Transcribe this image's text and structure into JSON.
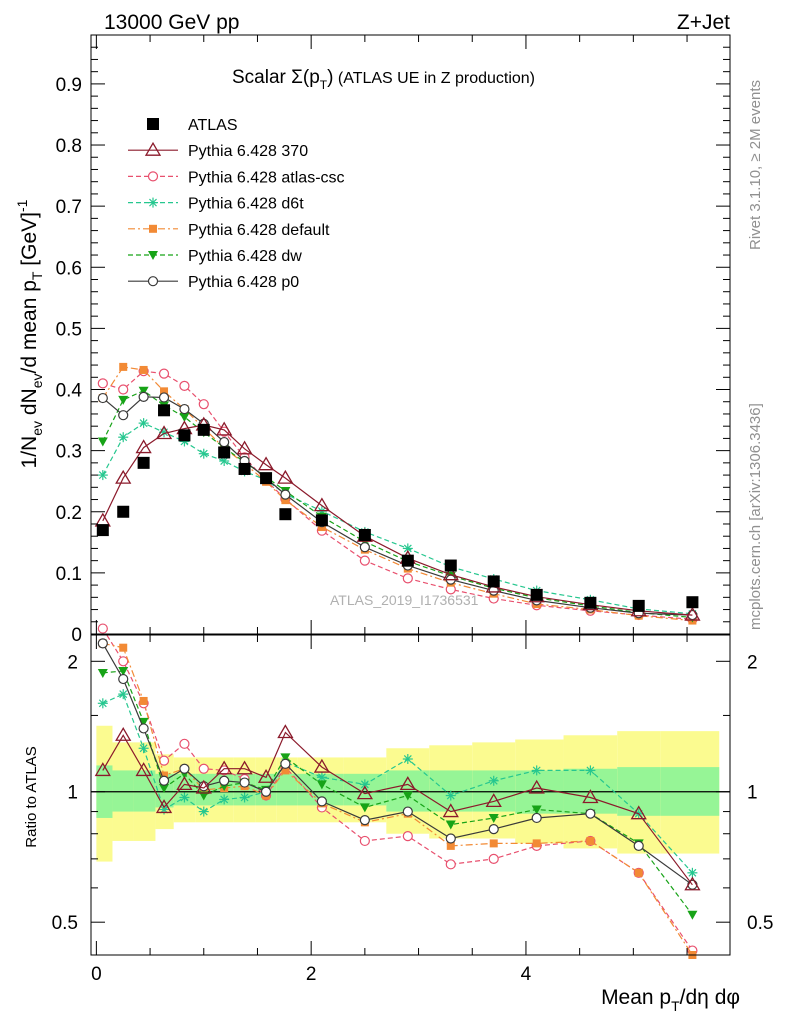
{
  "header": {
    "energy_label": "13000 GeV pp",
    "process_label": "Z+Jet"
  },
  "plot_title": {
    "main": "Scalar Σ(p",
    "sub": "T",
    "close": ")",
    "rest": " (ATLAS UE in Z production)"
  },
  "side_labels": {
    "rivet": "Rivet 3.1.10, ≥ 2M events",
    "mcplots": "mcplots.cern.ch [arXiv:1306.3436]"
  },
  "watermark": "ATLAS_2019_I1736531",
  "y_label_main": {
    "p1": "1/N",
    "s1": "ev",
    "p2": " dN",
    "s2": "ev",
    "p3": "/d mean p",
    "s3": "T",
    "p4": " [GeV]",
    "sup": "-1"
  },
  "y_label_ratio": "Ratio to ATLAS",
  "x_label": {
    "p1": "Mean p",
    "s1": "T",
    "p2": "/dη dφ"
  },
  "colors": {
    "atlas": "#000000",
    "p370": "#8b1a2b",
    "atlascsc": "#e8506e",
    "d6t": "#26c78f",
    "default": "#f28a35",
    "dw": "#17a317",
    "p0": "#3a3a3a",
    "band_outer": "#fbfb90",
    "band_inner": "#96f596"
  },
  "chart_data": [
    {
      "type": "line",
      "panel": "main",
      "title": "Scalar Σ(p_T) (ATLAS UE in Z production)",
      "xlabel": "Mean p_T/dη dφ",
      "ylabel": "1/N_ev dN_ev/d mean p_T [GeV]^-1",
      "xlim": [
        -0.05,
        5.9
      ],
      "ylim": [
        0,
        0.98
      ],
      "x_ticks": [
        0,
        2,
        4
      ],
      "y_ticks": [
        0,
        0.1,
        0.2,
        0.3,
        0.4,
        0.5,
        0.6,
        0.7,
        0.8,
        0.9
      ],
      "y_tick_labels": [
        "0",
        "0.1",
        "0.2",
        "0.3",
        "0.4",
        "0.5",
        "0.6",
        "0.7",
        "0.8",
        "0.9"
      ],
      "legend_position": "top-left",
      "series": [
        {
          "name": "ATLAS",
          "key": "atlas",
          "marker": "square",
          "line": "none",
          "x": [
            0.06,
            0.25,
            0.44,
            0.63,
            0.82,
            1.0,
            1.19,
            1.38,
            1.58,
            1.76,
            2.1,
            2.5,
            2.9,
            3.3,
            3.7,
            4.1,
            4.6,
            5.05,
            5.55
          ],
          "y": [
            0.17,
            0.2,
            0.28,
            0.366,
            0.325,
            0.334,
            0.297,
            0.27,
            0.255,
            0.196,
            0.186,
            0.162,
            0.12,
            0.112,
            0.086,
            0.064,
            0.051,
            0.046,
            0.052
          ]
        },
        {
          "name": "Pythia 6.428 370",
          "key": "p370",
          "marker": "open-triangle",
          "line": "solid",
          "x": [
            0.06,
            0.25,
            0.44,
            0.63,
            0.82,
            1.0,
            1.19,
            1.38,
            1.58,
            1.76,
            2.1,
            2.5,
            2.9,
            3.3,
            3.7,
            4.1,
            4.6,
            5.05,
            5.55
          ],
          "y": [
            0.185,
            0.255,
            0.305,
            0.328,
            0.336,
            0.342,
            0.334,
            0.303,
            0.277,
            0.255,
            0.21,
            0.16,
            0.124,
            0.097,
            0.077,
            0.061,
            0.048,
            0.038,
            0.031
          ]
        },
        {
          "name": "Pythia 6.428 atlas-csc",
          "key": "atlascsc",
          "marker": "open-circle",
          "line": "dashed",
          "x": [
            0.06,
            0.25,
            0.44,
            0.63,
            0.82,
            1.0,
            1.19,
            1.38,
            1.58,
            1.76,
            2.1,
            2.5,
            2.9,
            3.3,
            3.7,
            4.1,
            4.6,
            5.05,
            5.55
          ],
          "y": [
            0.41,
            0.4,
            0.43,
            0.426,
            0.406,
            0.376,
            0.331,
            0.289,
            0.251,
            0.221,
            0.169,
            0.12,
            0.091,
            0.073,
            0.058,
            0.047,
            0.038,
            0.031,
            0.024
          ]
        },
        {
          "name": "Pythia 6.428 d6t",
          "key": "d6t",
          "marker": "star",
          "line": "dashed",
          "x": [
            0.06,
            0.25,
            0.44,
            0.63,
            0.82,
            1.0,
            1.19,
            1.38,
            1.58,
            1.76,
            2.1,
            2.5,
            2.9,
            3.3,
            3.7,
            4.1,
            4.6,
            5.05,
            5.55
          ],
          "y": [
            0.26,
            0.322,
            0.345,
            0.33,
            0.315,
            0.295,
            0.283,
            0.266,
            0.252,
            0.229,
            0.201,
            0.167,
            0.14,
            0.11,
            0.09,
            0.071,
            0.056,
            0.041,
            0.033
          ]
        },
        {
          "name": "Pythia 6.428 default",
          "key": "default",
          "marker": "filled-square",
          "line": "dashdot",
          "x": [
            0.06,
            0.25,
            0.44,
            0.63,
            0.82,
            1.0,
            1.19,
            1.38,
            1.58,
            1.76,
            2.1,
            2.5,
            2.9,
            3.3,
            3.7,
            4.1,
            4.6,
            5.05,
            5.55
          ],
          "y": [
            0.386,
            0.437,
            0.432,
            0.397,
            0.368,
            0.337,
            0.304,
            0.279,
            0.249,
            0.219,
            0.175,
            0.138,
            0.107,
            0.084,
            0.066,
            0.049,
            0.04,
            0.03,
            0.022
          ]
        },
        {
          "name": "Pythia 6.428 dw",
          "key": "dw",
          "marker": "filled-triangle-down",
          "line": "dashed",
          "x": [
            0.06,
            0.25,
            0.44,
            0.63,
            0.82,
            1.0,
            1.19,
            1.38,
            1.58,
            1.76,
            2.1,
            2.5,
            2.9,
            3.3,
            3.7,
            4.1,
            4.6,
            5.05,
            5.55
          ],
          "y": [
            0.315,
            0.383,
            0.398,
            0.374,
            0.355,
            0.33,
            0.305,
            0.281,
            0.257,
            0.234,
            0.192,
            0.151,
            0.119,
            0.095,
            0.075,
            0.059,
            0.046,
            0.035,
            0.027
          ]
        },
        {
          "name": "Pythia 6.428 p0",
          "key": "p0",
          "marker": "open-circle",
          "line": "solid",
          "x": [
            0.06,
            0.25,
            0.44,
            0.63,
            0.82,
            1.0,
            1.19,
            1.38,
            1.58,
            1.76,
            2.1,
            2.5,
            2.9,
            3.3,
            3.7,
            4.1,
            4.6,
            5.05,
            5.55
          ],
          "y": [
            0.386,
            0.358,
            0.388,
            0.387,
            0.368,
            0.344,
            0.314,
            0.283,
            0.255,
            0.228,
            0.183,
            0.142,
            0.112,
            0.089,
            0.071,
            0.055,
            0.043,
            0.034,
            0.031
          ]
        }
      ]
    },
    {
      "type": "line",
      "panel": "ratio",
      "ylabel": "Ratio to ATLAS",
      "xlabel": "Mean p_T/dη dφ",
      "xlim": [
        -0.05,
        5.9
      ],
      "ylim": [
        0.42,
        2.3
      ],
      "y_scale": "log",
      "x_ticks": [
        0,
        2,
        4
      ],
      "y_ticks": [
        0.5,
        1,
        2
      ],
      "y_tick_labels": [
        "0.5",
        "1",
        "2"
      ],
      "reference_line": 1,
      "bands": {
        "x_edges": [
          0.0,
          0.15,
          0.35,
          0.55,
          0.72,
          0.92,
          1.1,
          1.28,
          1.48,
          1.68,
          1.87,
          2.3,
          2.7,
          3.1,
          3.5,
          3.9,
          4.35,
          4.85,
          5.25,
          5.8
        ],
        "outer_lo": [
          0.69,
          0.77,
          0.77,
          0.82,
          0.85,
          0.85,
          0.85,
          0.85,
          0.85,
          0.85,
          0.85,
          0.85,
          0.8,
          0.78,
          0.78,
          0.76,
          0.74,
          0.72,
          0.72
        ],
        "outer_hi": [
          1.42,
          1.3,
          1.3,
          1.22,
          1.2,
          1.2,
          1.2,
          1.2,
          1.2,
          1.2,
          1.2,
          1.2,
          1.26,
          1.28,
          1.3,
          1.32,
          1.35,
          1.38,
          1.38
        ],
        "inner_lo": [
          0.87,
          0.9,
          0.9,
          0.92,
          0.93,
          0.93,
          0.93,
          0.93,
          0.93,
          0.93,
          0.93,
          0.93,
          0.9,
          0.9,
          0.9,
          0.89,
          0.89,
          0.88,
          0.88
        ],
        "inner_hi": [
          1.15,
          1.12,
          1.12,
          1.1,
          1.1,
          1.1,
          1.1,
          1.1,
          1.1,
          1.1,
          1.1,
          1.1,
          1.12,
          1.12,
          1.12,
          1.12,
          1.13,
          1.14,
          1.14
        ]
      },
      "series": [
        {
          "name": "Pythia 6.428 370",
          "key": "p370",
          "marker": "open-triangle",
          "line": "solid",
          "x": [
            0.06,
            0.25,
            0.44,
            0.63,
            0.82,
            1.0,
            1.19,
            1.38,
            1.58,
            1.76,
            2.1,
            2.5,
            2.9,
            3.3,
            3.7,
            4.1,
            4.6,
            5.05,
            5.55
          ],
          "y": [
            1.12,
            1.35,
            1.12,
            0.92,
            1.04,
            1.02,
            1.13,
            1.13,
            1.08,
            1.37,
            1.14,
            0.99,
            1.04,
            0.9,
            0.95,
            1.02,
            0.97,
            0.89,
            0.61
          ]
        },
        {
          "name": "Pythia 6.428 atlas-csc",
          "key": "atlascsc",
          "marker": "open-circle",
          "line": "dashed",
          "x": [
            0.06,
            0.25,
            0.44,
            0.63,
            0.82,
            1.0,
            1.19,
            1.38,
            1.58,
            1.76,
            2.1,
            2.5,
            2.9,
            3.3,
            3.7,
            4.1,
            4.6,
            5.05,
            5.55
          ],
          "y": [
            2.38,
            2.0,
            1.6,
            1.18,
            1.29,
            1.13,
            1.12,
            1.07,
            0.98,
            1.14,
            0.92,
            0.77,
            0.79,
            0.68,
            0.7,
            0.75,
            0.77,
            0.65,
            0.43
          ]
        },
        {
          "name": "Pythia 6.428 d6t",
          "key": "d6t",
          "marker": "star",
          "line": "dashed",
          "x": [
            0.06,
            0.25,
            0.44,
            0.63,
            0.82,
            1.0,
            1.19,
            1.38,
            1.58,
            1.76,
            2.1,
            2.5,
            2.9,
            3.3,
            3.7,
            4.1,
            4.6,
            5.05,
            5.55
          ],
          "y": [
            1.6,
            1.68,
            1.26,
            0.91,
            0.97,
            0.9,
            0.96,
            0.97,
            1.0,
            1.17,
            1.08,
            1.04,
            1.19,
            0.98,
            1.06,
            1.12,
            1.12,
            0.89,
            0.65
          ]
        },
        {
          "name": "Pythia 6.428 default",
          "key": "default",
          "marker": "filled-square",
          "line": "dashdot",
          "x": [
            0.06,
            0.25,
            0.44,
            0.63,
            0.82,
            1.0,
            1.19,
            1.38,
            1.58,
            1.76,
            2.1,
            2.5,
            2.9,
            3.3,
            3.7,
            4.1,
            4.6,
            5.05,
            5.55
          ],
          "y": [
            2.2,
            2.15,
            1.62,
            1.09,
            1.13,
            1.01,
            1.02,
            1.03,
            0.98,
            1.12,
            0.94,
            0.85,
            0.89,
            0.75,
            0.76,
            0.76,
            0.77,
            0.65,
            0.42
          ]
        },
        {
          "name": "Pythia 6.428 dw",
          "key": "dw",
          "marker": "filled-triangle-down",
          "line": "dashed",
          "x": [
            0.06,
            0.25,
            0.44,
            0.63,
            0.82,
            1.0,
            1.19,
            1.38,
            1.58,
            1.76,
            2.1,
            2.5,
            2.9,
            3.3,
            3.7,
            4.1,
            4.6,
            5.05,
            5.55
          ],
          "y": [
            1.88,
            1.9,
            1.45,
            1.02,
            1.1,
            0.98,
            1.03,
            1.05,
            1.01,
            1.2,
            1.04,
            0.92,
            0.98,
            0.84,
            0.87,
            0.91,
            0.89,
            0.76,
            0.52
          ]
        },
        {
          "name": "Pythia 6.428 p0",
          "key": "p0",
          "marker": "open-circle",
          "line": "solid",
          "x": [
            0.06,
            0.25,
            0.44,
            0.63,
            0.82,
            1.0,
            1.19,
            1.38,
            1.58,
            1.76,
            2.1,
            2.5,
            2.9,
            3.3,
            3.7,
            4.1,
            4.6,
            5.05,
            5.55
          ],
          "y": [
            2.2,
            1.82,
            1.4,
            1.06,
            1.13,
            1.03,
            1.06,
            1.05,
            1.0,
            1.16,
            0.95,
            0.86,
            0.9,
            0.78,
            0.82,
            0.87,
            0.89,
            0.75,
            0.61
          ]
        }
      ]
    }
  ]
}
